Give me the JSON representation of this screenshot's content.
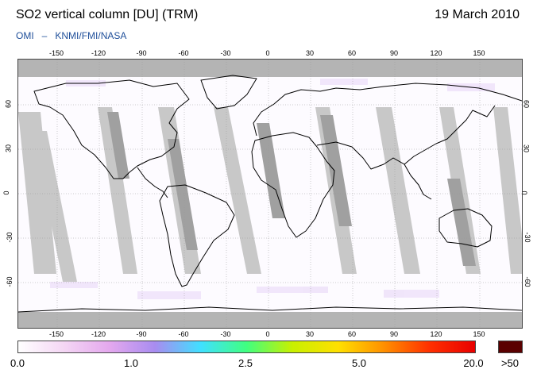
{
  "header": {
    "title": "SO2 vertical column [DU] (TRM)",
    "date": "19 March 2010",
    "credit_left": "OMI",
    "credit_dash": "–",
    "credit_right": "KNMI/FMI/NASA"
  },
  "map": {
    "projection": "equirectangular",
    "longitude_ticks": [
      "-150",
      "-120",
      "-90",
      "-60",
      "-30",
      "0",
      "30",
      "60",
      "90",
      "120",
      "150"
    ],
    "latitude_ticks": [
      "60",
      "30",
      "0",
      "-30",
      "-60"
    ],
    "colors": {
      "background": "#fdfbff",
      "no_data_gap": "#c8c8c8",
      "overlap_swath": "#a0a0a0",
      "polar_no_data": "#b4b4b4",
      "coastline": "#000000"
    }
  },
  "colorbar": {
    "labels": [
      "0.0",
      "1.0",
      "2.5",
      "5.0",
      "20.0"
    ],
    "overflow_label": ">50",
    "gradient_stops": [
      "#ffffff",
      "#f4d6f4",
      "#e4a8ee",
      "#a88cf0",
      "#40e0ff",
      "#40ff80",
      "#c8f000",
      "#ffe000",
      "#ff9000",
      "#ff3000",
      "#e80000"
    ],
    "overflow_color": "#5a0000"
  }
}
